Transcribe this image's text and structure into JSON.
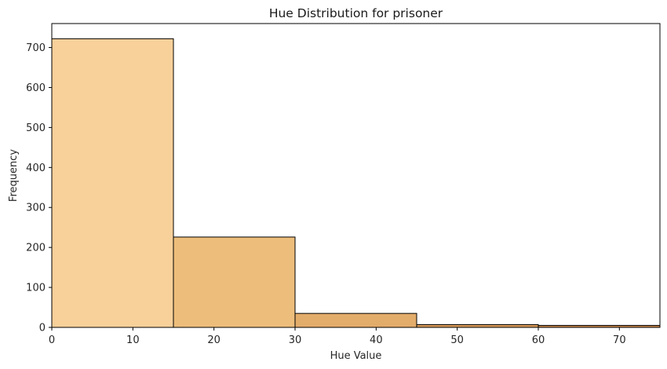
{
  "chart_data": {
    "type": "bar",
    "title": "Hue Distribution for prisoner",
    "xlabel": "Hue Value",
    "ylabel": "Frequency",
    "xlim": [
      0,
      75
    ],
    "ylim": [
      0,
      760
    ],
    "xticks": [
      0,
      10,
      20,
      30,
      40,
      50,
      60,
      70
    ],
    "yticks": [
      0,
      100,
      200,
      300,
      400,
      500,
      600,
      700
    ],
    "bins": [
      {
        "start": 0,
        "end": 15,
        "value": 722,
        "color": "#F8D09A"
      },
      {
        "start": 15,
        "end": 30,
        "value": 226,
        "color": "#EDBE7B"
      },
      {
        "start": 30,
        "end": 45,
        "value": 35,
        "color": "#E2AC6A"
      },
      {
        "start": 45,
        "end": 60,
        "value": 7,
        "color": "#D69A58"
      },
      {
        "start": 60,
        "end": 75,
        "value": 5,
        "color": "#C8894A"
      }
    ],
    "grid": false,
    "legend": "none"
  }
}
